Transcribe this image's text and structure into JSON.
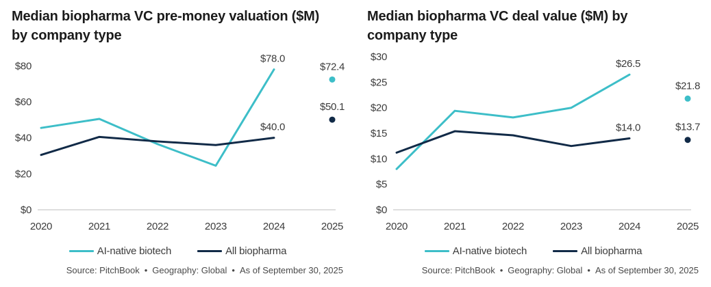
{
  "colors": {
    "teal": "#3DBEC8",
    "navy": "#112A47",
    "title_text": "#1b1b1b",
    "tick_text": "#3c3c3c",
    "data_label_text": "#3c3c3c",
    "baseline": "#c9c9c9",
    "source_text": "#494949",
    "background": "#ffffff"
  },
  "chart_data": [
    {
      "type": "line",
      "title": "Median biopharma VC pre-money valuation ($M) by company type",
      "title_lines": [
        "Median biopharma VC pre-money valuation ($M)",
        "by company type"
      ],
      "x_labels": [
        "2020",
        "2021",
        "2022",
        "2023",
        "2024",
        "2025"
      ],
      "y_ticks": [
        {
          "label": "$0",
          "value": 0
        },
        {
          "label": "$20",
          "value": 20
        },
        {
          "label": "$40",
          "value": 40
        },
        {
          "label": "$60",
          "value": 60
        },
        {
          "label": "$80",
          "value": 80
        }
      ],
      "ylim": [
        0,
        90
      ],
      "grid": "baseline-only",
      "legend_position": "bottom-center",
      "series": [
        {
          "name": "AI-native biotech",
          "color": "teal",
          "x": [
            2020,
            2021,
            2022,
            2023,
            2024
          ],
          "line_values": [
            45.5,
            50.5,
            36.5,
            24.5,
            78.0
          ],
          "isolated_point": {
            "x": 2025,
            "value": 72.4
          },
          "point_labels": {
            "2024": "$78.0",
            "2025": "$72.4"
          }
        },
        {
          "name": "All biopharma",
          "color": "navy",
          "x": [
            2020,
            2021,
            2022,
            2023,
            2024
          ],
          "line_values": [
            30.5,
            40.5,
            38.0,
            36.0,
            40.0
          ],
          "isolated_point": {
            "x": 2025,
            "value": 50.1
          },
          "point_labels": {
            "2024": "$40.0",
            "2025": "$50.1"
          }
        }
      ],
      "source_parts": [
        "Source: PitchBook",
        "Geography: Global",
        "As of September 30, 2025"
      ]
    },
    {
      "type": "line",
      "title": "Median biopharma VC deal value ($M) by company type",
      "title_lines": [
        "Median biopharma VC deal value ($M) by",
        "company type"
      ],
      "x_labels": [
        "2020",
        "2021",
        "2022",
        "2023",
        "2024",
        "2025"
      ],
      "y_ticks": [
        {
          "label": "$0",
          "value": 0
        },
        {
          "label": "$5",
          "value": 5
        },
        {
          "label": "$10",
          "value": 10
        },
        {
          "label": "$15",
          "value": 15
        },
        {
          "label": "$20",
          "value": 20
        },
        {
          "label": "$25",
          "value": 25
        },
        {
          "label": "$30",
          "value": 30
        }
      ],
      "ylim": [
        0,
        31.75
      ],
      "grid": "baseline-only",
      "legend_position": "bottom-center",
      "series": [
        {
          "name": "AI-native biotech",
          "color": "teal",
          "x": [
            2020,
            2021,
            2022,
            2023,
            2024
          ],
          "line_values": [
            8.0,
            19.4,
            18.1,
            20.0,
            26.5
          ],
          "isolated_point": {
            "x": 2025,
            "value": 21.8
          },
          "point_labels": {
            "2024": "$26.5",
            "2025": "$21.8"
          }
        },
        {
          "name": "All biopharma",
          "color": "navy",
          "x": [
            2020,
            2021,
            2022,
            2023,
            2024
          ],
          "line_values": [
            11.2,
            15.4,
            14.6,
            12.5,
            14.0
          ],
          "isolated_point": {
            "x": 2025,
            "value": 13.7
          },
          "point_labels": {
            "2024": "$14.0",
            "2025": "$13.7"
          }
        }
      ],
      "source_parts": [
        "Source: PitchBook",
        "Geography: Global",
        "As of September 30, 2025"
      ]
    }
  ]
}
